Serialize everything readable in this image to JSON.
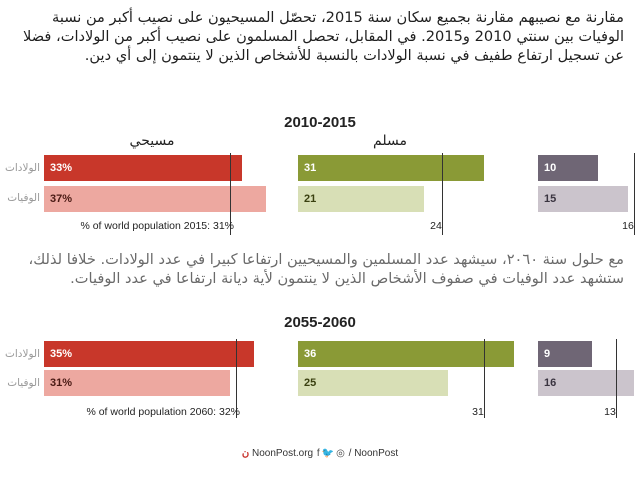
{
  "intro_text": "مقارنة مع نصيبهم مقارنة بجميع سكان سنة 2015، تحصّل المسيحيون على نصيب أكبر من نسبة الوفيات بين سنتي 2010 و2015. في المقابل، تحصل المسلمون على نصيب أكبر من الولادات، فضلا عن تسجيل ارتفاع طفيف في نسبة الولادات بالنسبة للأشخاص الذين لا ينتمون إلى أي دين.",
  "middle_text": "مع حلول سنة ٢٠٦٠، سيشهد عدد المسلمين والمسيحيين ارتفاعا كبيرا في عدد الولادات. خلافا لذلك، ستشهد عدد الوفيات في صفوف الأشخاص الذين لا ينتمون لأية ديانة ارتفاعا في عدد الوفيات.",
  "colors": {
    "christian_births": "#c8372a",
    "christian_deaths": "#eda8a0",
    "muslim_births": "#8a9a36",
    "muslim_deaths": "#d8dfb6",
    "none_births": "#6f6675",
    "none_deaths": "#cbc4cc"
  },
  "chart_data": [
    {
      "type": "bar",
      "title": "2010-2015",
      "groups": [
        "مسيحي",
        "مسلم",
        ""
      ],
      "row_labels": [
        "الولادات",
        "الوفيات"
      ],
      "series": [
        {
          "name": "الولادات",
          "values": [
            33,
            31,
            10
          ],
          "labels": [
            "33%",
            "31",
            "10"
          ]
        },
        {
          "name": "الوفيات",
          "values": [
            37,
            21,
            15
          ],
          "labels": [
            "37%",
            "21",
            "15"
          ]
        }
      ],
      "population_share": [
        31,
        24,
        16
      ],
      "reference_labels": [
        "% of world population 2015: 31%",
        "24",
        "16"
      ]
    },
    {
      "type": "bar",
      "title": "2055-2060",
      "groups": [
        "",
        "",
        ""
      ],
      "row_labels": [
        "الولادات",
        "الوفيات"
      ],
      "series": [
        {
          "name": "الولادات",
          "values": [
            35,
            36,
            9
          ],
          "labels": [
            "35%",
            "36",
            "9"
          ]
        },
        {
          "name": "الوفيات",
          "values": [
            31,
            25,
            16
          ],
          "labels": [
            "31%",
            "25",
            "16"
          ]
        }
      ],
      "population_share": [
        32,
        31,
        13
      ],
      "reference_labels": [
        "% of world population 2060: 32%",
        "31",
        "13"
      ]
    }
  ],
  "footer": {
    "site": "NoonPost.org",
    "social_icons": [
      "facebook-icon",
      "twitter-icon",
      "instagram-icon"
    ],
    "handle": "/ NoonPost"
  }
}
